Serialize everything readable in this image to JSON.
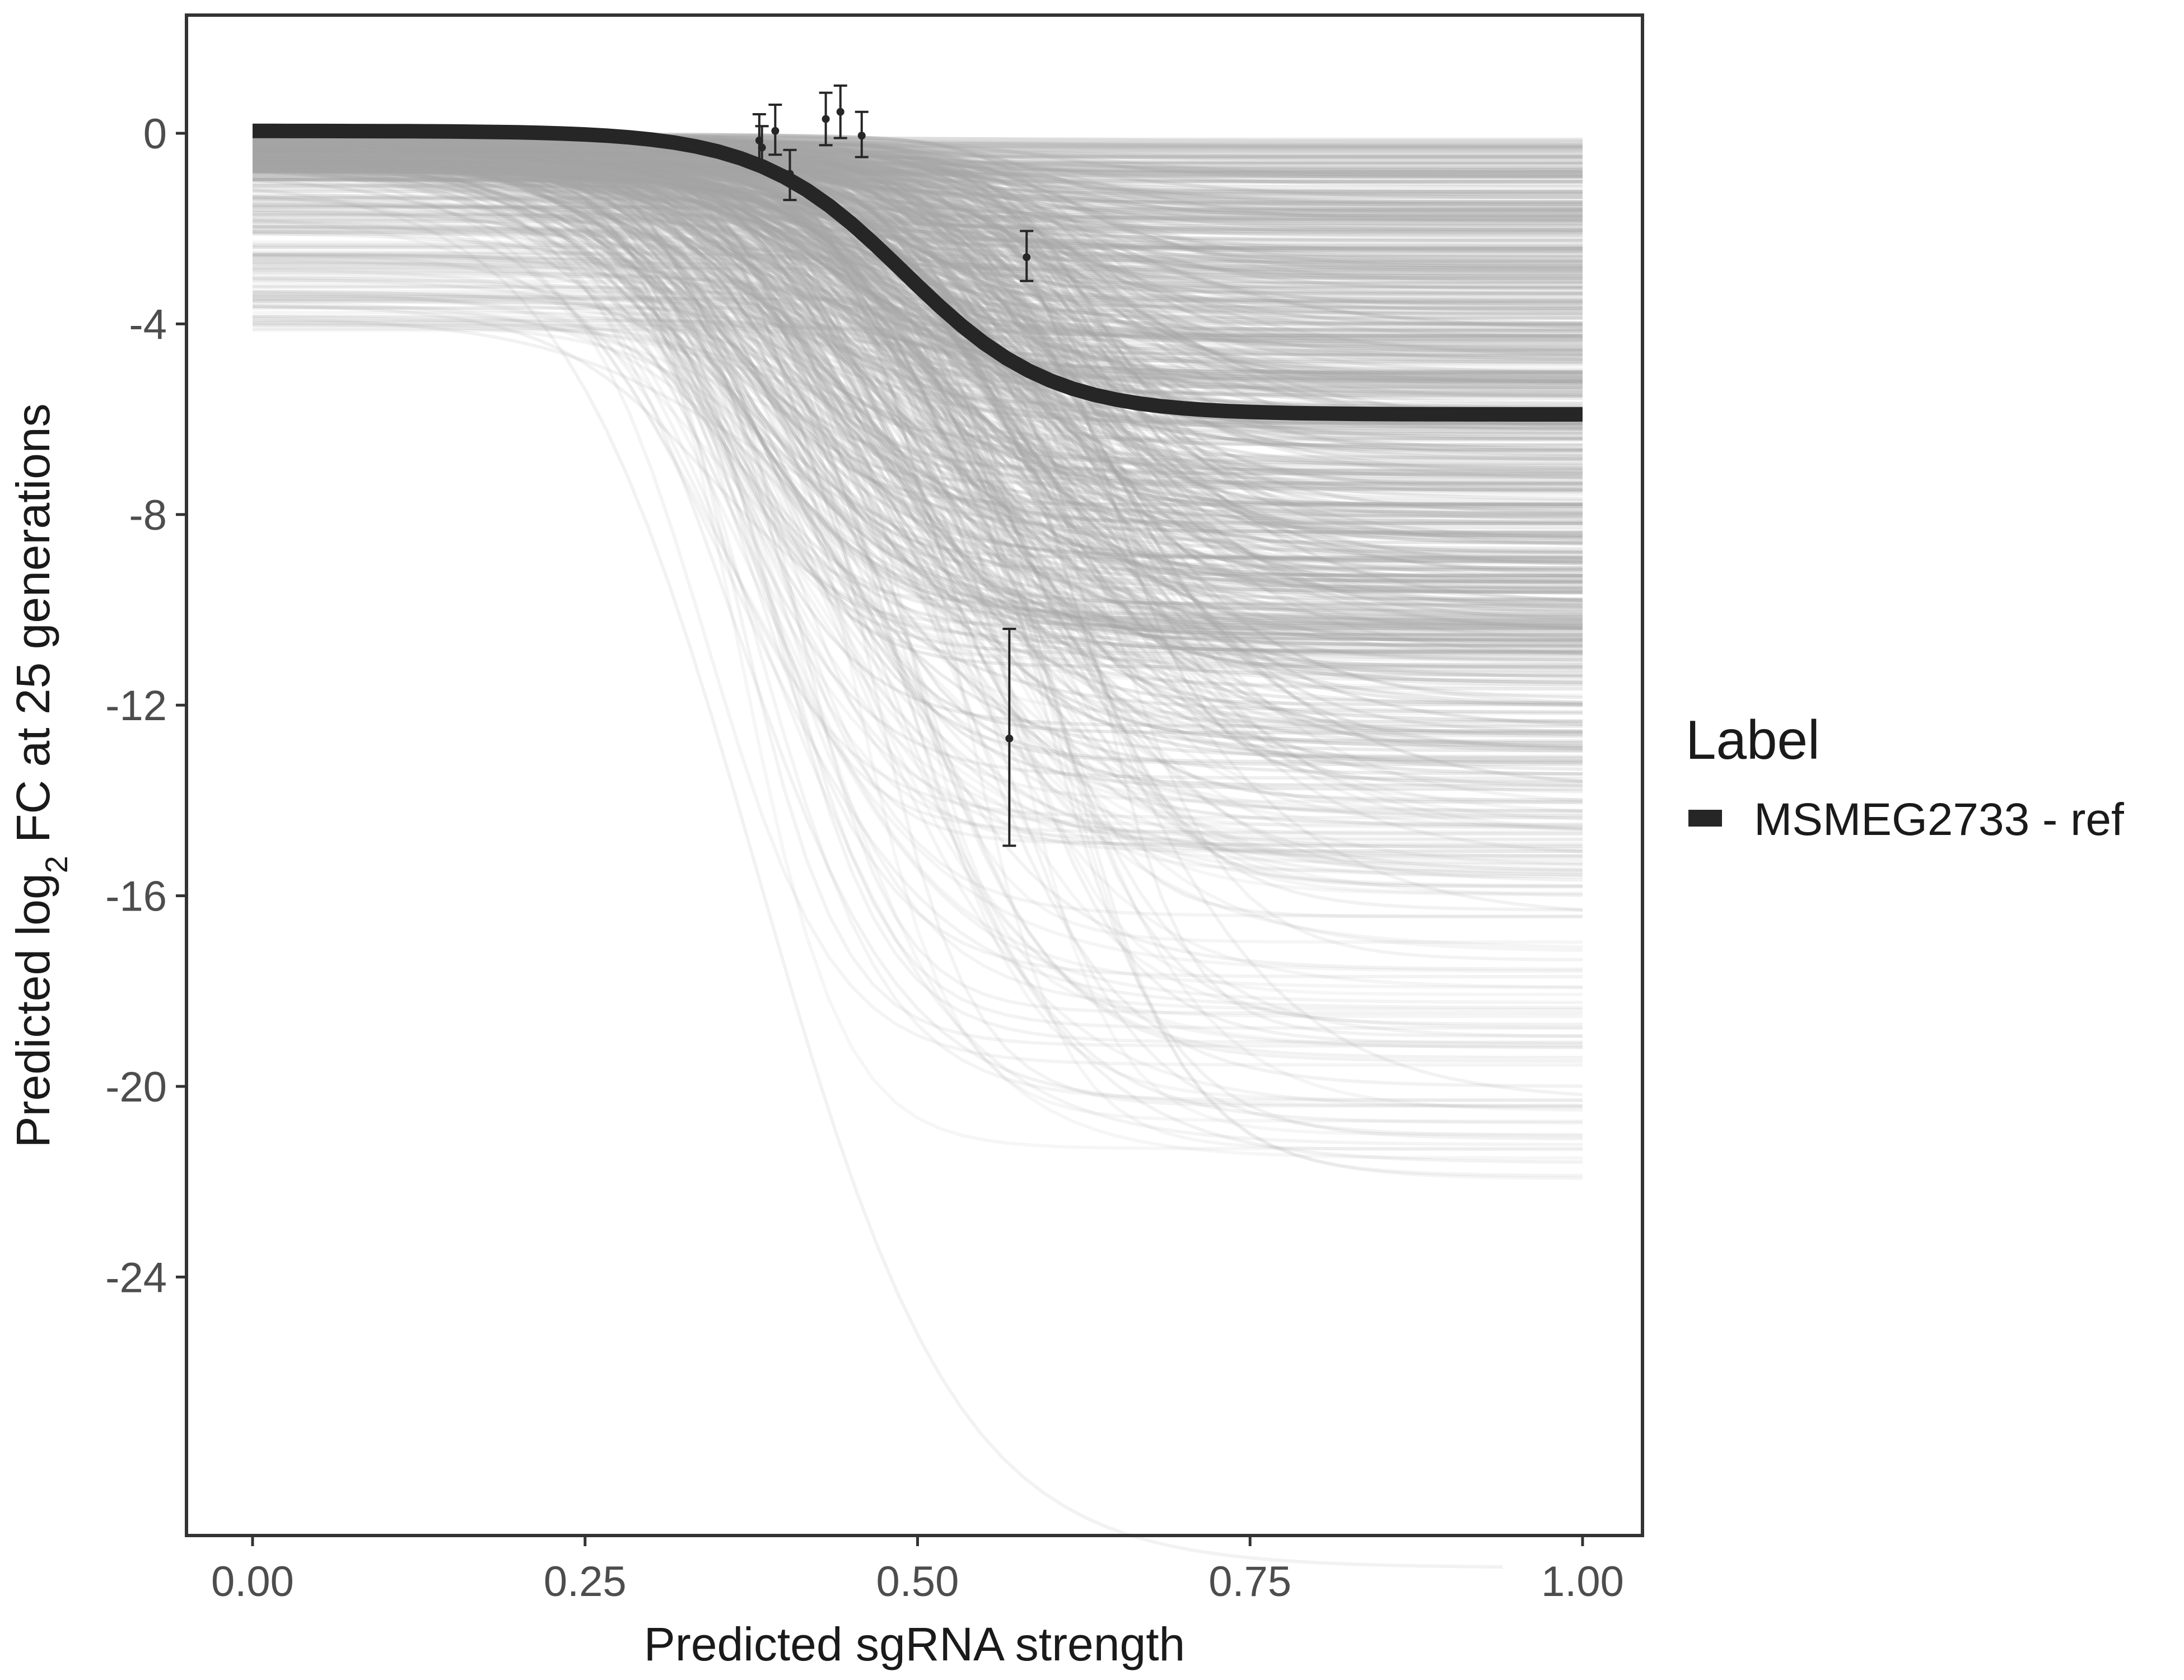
{
  "chart_data": {
    "type": "line",
    "xlabel": "Predicted sgRNA strength",
    "ylabel": {
      "prefix": "Predicted  log",
      "subscript": "2",
      "suffix": " FC at 25 generations"
    },
    "xlim": [
      -0.12,
      2.08
    ],
    "ylim": [
      -29.5,
      2.4
    ],
    "x_ticks": [
      0.0,
      0.25,
      0.5,
      0.75,
      1.0
    ],
    "x_tick_labels": [
      "0.00",
      "0.25",
      "0.50",
      "0.75",
      "1.00"
    ],
    "y_ticks": [
      0,
      -4,
      -8,
      -12,
      -16,
      -20,
      -24
    ],
    "y_tick_labels": [
      "0",
      "-4",
      "-8",
      "-12",
      "-16",
      "-20",
      "-24"
    ],
    "grid": false,
    "legend": {
      "title": "Label",
      "position": "right",
      "entries": [
        {
          "name": "MSMEG2733 - ref",
          "color": "#262626"
        }
      ]
    },
    "series": [
      {
        "name": "MSMEG2733 - ref",
        "kind": "fitted-curve",
        "color": "#262626",
        "model": {
          "form": "logistic",
          "upper": 0.05,
          "lower": -5.9,
          "midpoint": 0.49,
          "scale": 0.055,
          "x_start": 0.0,
          "x_end": 1.0
        }
      },
      {
        "name": "",
        "kind": "posterior-draws",
        "color": "#a6a6a6",
        "description_count": 800
      },
      {
        "name": "",
        "kind": "points-with-error",
        "color": "#262626",
        "points": [
          {
            "x": 0.381,
            "y": -0.15,
            "ymin": -0.65,
            "ymax": 0.4
          },
          {
            "x": 0.383,
            "y": -0.3,
            "ymin": -0.75,
            "ymax": 0.15
          },
          {
            "x": 0.393,
            "y": 0.05,
            "ymin": -0.45,
            "ymax": 0.6
          },
          {
            "x": 0.404,
            "y": -0.85,
            "ymin": -1.4,
            "ymax": -0.35
          },
          {
            "x": 0.431,
            "y": 0.3,
            "ymin": -0.25,
            "ymax": 0.85
          },
          {
            "x": 0.442,
            "y": 0.45,
            "ymin": -0.1,
            "ymax": 1.0
          },
          {
            "x": 0.458,
            "y": -0.05,
            "ymin": -0.5,
            "ymax": 0.45
          },
          {
            "x": 0.569,
            "y": -12.7,
            "ymin": -14.95,
            "ymax": -10.4
          },
          {
            "x": 0.582,
            "y": -2.6,
            "ymin": -3.1,
            "ymax": -2.05
          }
        ]
      }
    ]
  }
}
